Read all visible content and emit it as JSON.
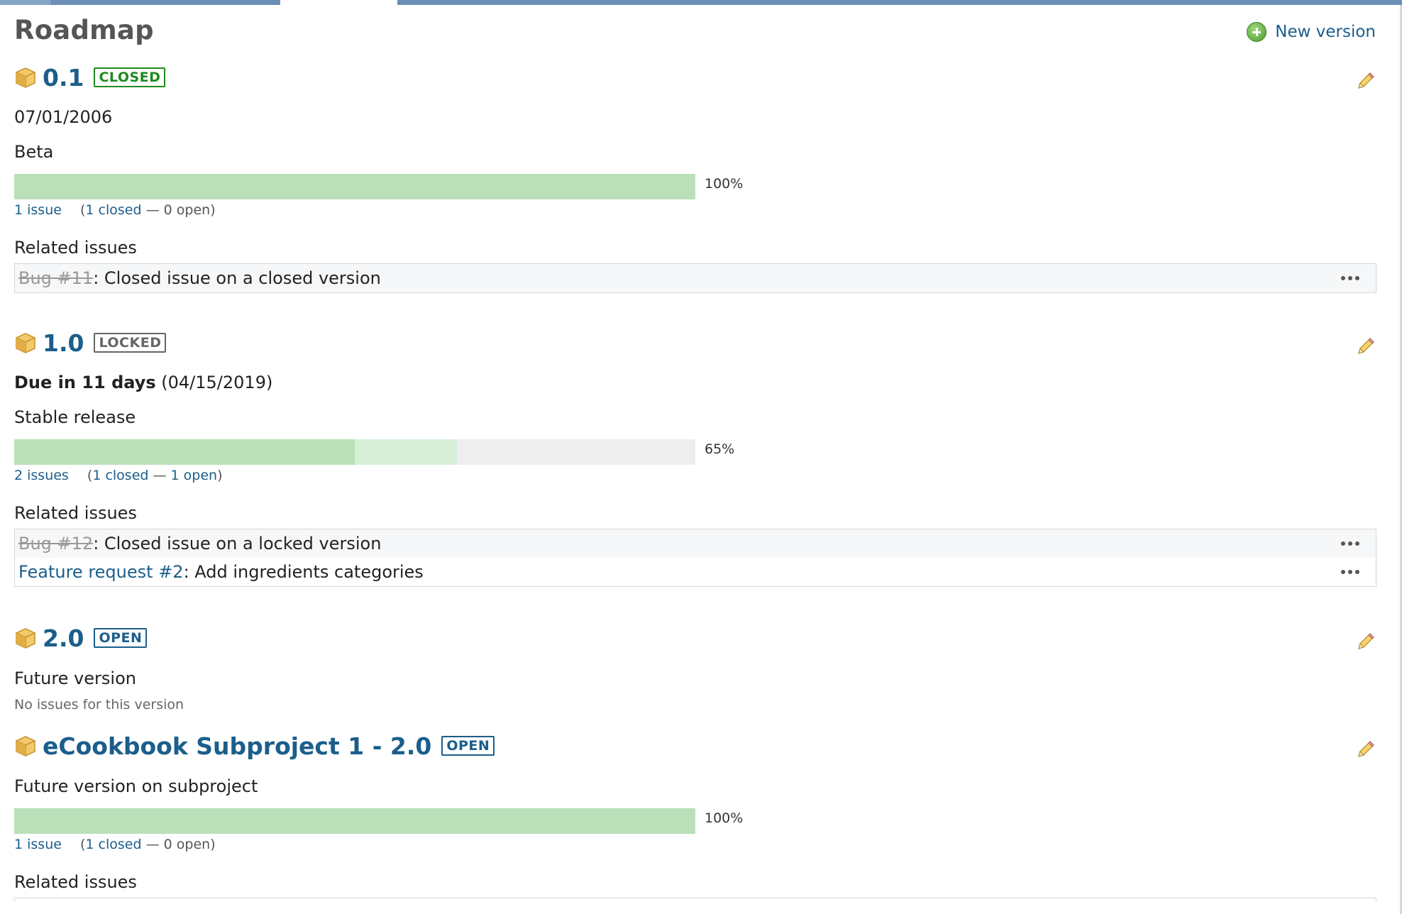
{
  "page": {
    "title": "Roadmap",
    "new_version_label": "New version"
  },
  "colors": {
    "link": "#1b5e8b",
    "closed_badge": "#1e8a1e",
    "locked_badge": "#666666",
    "progress_closed": "#bae0ba",
    "progress_done": "#d8f0d8",
    "progress_track": "#eeeeee"
  },
  "versions": [
    {
      "name": "0.1",
      "status": "CLOSED",
      "date": "07/01/2006",
      "description": "Beta",
      "progress": {
        "closed_pct": 100,
        "done_pct": 0,
        "label": "100%"
      },
      "issues": {
        "total": "1 issue",
        "closed": "1 closed",
        "sep": "—",
        "open": "0 open"
      },
      "related_title": "Related issues",
      "related": [
        {
          "ref": "Bug #11",
          "subject": ": Closed issue on a closed version",
          "closed": true
        }
      ]
    },
    {
      "name": "1.0",
      "status": "LOCKED",
      "due_label": "Due in 11 days",
      "date": "(04/15/2019)",
      "description": "Stable release",
      "progress": {
        "closed_pct": 50,
        "done_pct": 15,
        "label": "65%"
      },
      "issues": {
        "total": "2 issues",
        "closed": "1 closed",
        "sep": "—",
        "open": "1 open"
      },
      "related_title": "Related issues",
      "related": [
        {
          "ref": "Bug #12",
          "subject": ": Closed issue on a locked version",
          "closed": true
        },
        {
          "ref": "Feature request #2",
          "subject": ": Add ingredients categories",
          "closed": false
        }
      ]
    },
    {
      "name": "2.0",
      "status": "OPEN",
      "description": "Future version",
      "no_issues": "No issues for this version"
    },
    {
      "name": "eCookbook Subproject 1 - 2.0",
      "status": "OPEN",
      "description": "Future version on subproject",
      "progress": {
        "closed_pct": 100,
        "done_pct": 0,
        "label": "100%"
      },
      "issues": {
        "total": "1 issue",
        "closed": "1 closed",
        "sep": "—",
        "open": "0 open"
      },
      "related_title": "Related issues"
    }
  ],
  "icons": {
    "package": "package-icon",
    "edit": "pencil-icon",
    "add": "plus-icon",
    "more": "more-dots-icon"
  }
}
